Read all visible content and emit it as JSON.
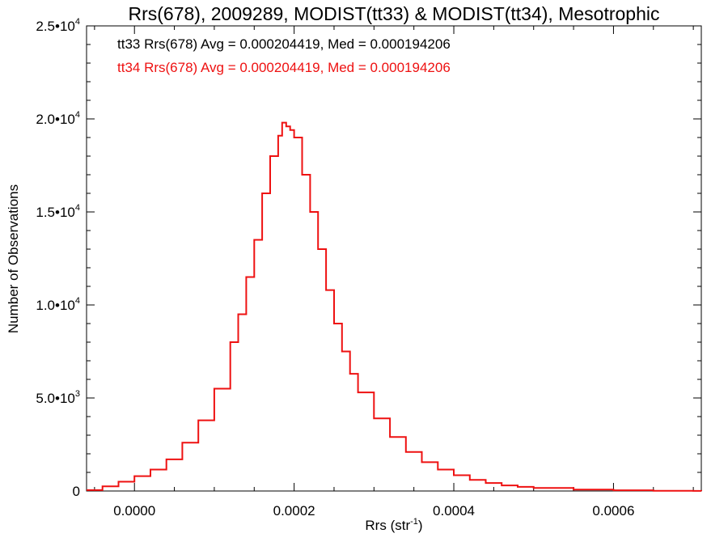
{
  "chart_data": {
    "type": "line",
    "title": "Rrs(678), 2009289, MODIST(tt33) & MODIST(tt34), Mesotrophic",
    "xlabel": "Rrs (str",
    "xlabel_sup": "-1",
    "xlabel_end": ")",
    "ylabel": "Number of Observations",
    "xlim": [
      -6e-05,
      0.00071
    ],
    "ylim": [
      0,
      25000
    ],
    "x_ticks": [
      {
        "value": 0.0,
        "label": "0.0000"
      },
      {
        "value": 0.0002,
        "label": "0.0002"
      },
      {
        "value": 0.0004,
        "label": "0.0004"
      },
      {
        "value": 0.0006,
        "label": "0.0006"
      }
    ],
    "y_ticks": [
      {
        "value": 0,
        "mant": "0",
        "exp": ""
      },
      {
        "value": 5000,
        "mant": "5.0•10",
        "exp": "3"
      },
      {
        "value": 10000,
        "mant": "1.0•10",
        "exp": "4"
      },
      {
        "value": 15000,
        "mant": "1.5•10",
        "exp": "4"
      },
      {
        "value": 20000,
        "mant": "2.0•10",
        "exp": "4"
      },
      {
        "value": 25000,
        "mant": "2.5•10",
        "exp": "4"
      }
    ],
    "grid": false,
    "legend_position": "top-left",
    "annotations": [
      {
        "text": "tt33 Rrs(678) Avg = 0.000204419, Med = 0.000194206",
        "color": "#000000"
      },
      {
        "text": "tt34 Rrs(678) Avg = 0.000204419, Med = 0.000194206",
        "color": "#ee1111"
      }
    ],
    "series": [
      {
        "color": "#ee1111",
        "step": true,
        "x": [
          -6e-05,
          -4e-05,
          -2e-05,
          0.0,
          2e-05,
          4e-05,
          6e-05,
          8e-05,
          0.0001,
          0.00012,
          0.00013,
          0.00014,
          0.00015,
          0.00016,
          0.00017,
          0.00018,
          0.000185,
          0.00019,
          0.000195,
          0.0002,
          0.00021,
          0.00022,
          0.00023,
          0.00024,
          0.00025,
          0.00026,
          0.00027,
          0.00028,
          0.0003,
          0.00032,
          0.00034,
          0.00036,
          0.00038,
          0.0004,
          0.00042,
          0.00044,
          0.00046,
          0.00048,
          0.0005,
          0.00055,
          0.0006,
          0.00065,
          0.0007,
          0.00071
        ],
        "y": [
          50,
          250,
          500,
          800,
          1150,
          1700,
          2600,
          3800,
          5500,
          8000,
          9500,
          11500,
          13500,
          16000,
          18000,
          19100,
          19800,
          19600,
          19400,
          19000,
          17000,
          15000,
          13000,
          10800,
          9000,
          7500,
          6300,
          5300,
          3900,
          2900,
          2100,
          1550,
          1150,
          850,
          600,
          430,
          300,
          220,
          160,
          80,
          40,
          15,
          5,
          2
        ]
      }
    ]
  }
}
